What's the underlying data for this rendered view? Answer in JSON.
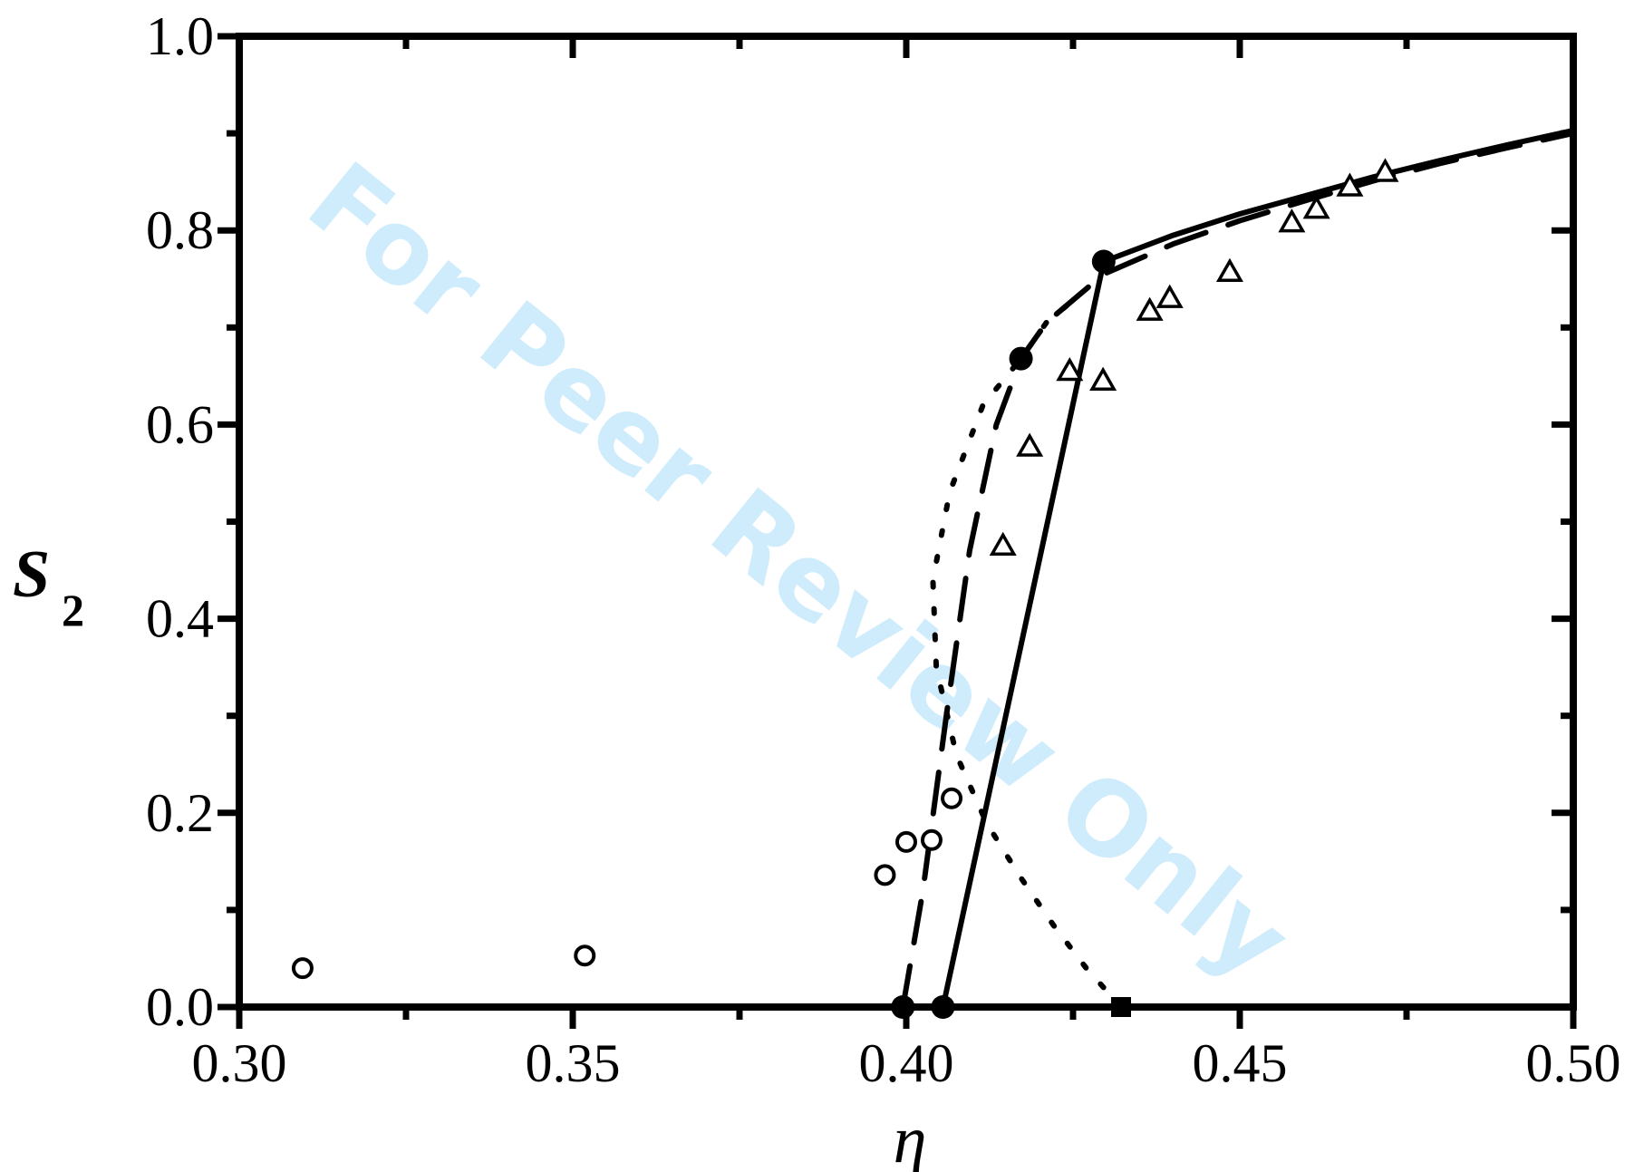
{
  "watermark": "For Peer Review Only",
  "chart_data": {
    "type": "line",
    "xlabel": "η",
    "ylabel": "S",
    "ylabel_subscript": "2",
    "xlim": [
      0.3,
      0.5
    ],
    "ylim": [
      0.0,
      1.0
    ],
    "x_ticks": [
      "0.30",
      "0.35",
      "0.40",
      "0.45",
      "0.50"
    ],
    "y_ticks": [
      "0.0",
      "0.2",
      "0.4",
      "0.6",
      "0.8",
      "1.0"
    ],
    "grid": false,
    "series": [
      {
        "style": "solid",
        "points": [
          [
            0.4055,
            0.0
          ],
          [
            0.4296,
            0.768
          ],
          [
            0.44,
            0.795
          ],
          [
            0.45,
            0.817
          ],
          [
            0.46,
            0.836
          ],
          [
            0.47,
            0.855
          ],
          [
            0.48,
            0.872
          ],
          [
            0.49,
            0.888
          ],
          [
            0.5,
            0.903
          ]
        ]
      },
      {
        "style": "dashed",
        "points": [
          [
            0.3995,
            0.0
          ],
          [
            0.4025,
            0.12
          ],
          [
            0.406,
            0.3
          ],
          [
            0.4095,
            0.47
          ],
          [
            0.4135,
            0.6
          ],
          [
            0.4172,
            0.668
          ],
          [
            0.421,
            0.705
          ],
          [
            0.4296,
            0.755
          ],
          [
            0.44,
            0.786
          ],
          [
            0.45,
            0.81
          ],
          [
            0.46,
            0.831
          ],
          [
            0.47,
            0.851
          ],
          [
            0.48,
            0.869
          ],
          [
            0.49,
            0.885
          ],
          [
            0.5,
            0.9
          ]
        ]
      },
      {
        "style": "dotted",
        "points": [
          [
            0.4322,
            0.0
          ],
          [
            0.427,
            0.04
          ],
          [
            0.422,
            0.085
          ],
          [
            0.417,
            0.135
          ],
          [
            0.412,
            0.19
          ],
          [
            0.4075,
            0.26
          ],
          [
            0.4045,
            0.35
          ],
          [
            0.404,
            0.44
          ],
          [
            0.4065,
            0.53
          ],
          [
            0.4115,
            0.62
          ],
          [
            0.4172,
            0.668
          ],
          [
            0.421,
            0.705
          ],
          [
            0.425,
            0.728
          ]
        ]
      }
    ],
    "markers": {
      "filled_circles": [
        [
          0.3995,
          0.0
        ],
        [
          0.4055,
          0.0
        ],
        [
          0.4172,
          0.668
        ],
        [
          0.4296,
          0.768
        ]
      ],
      "filled_squares": [
        [
          0.4322,
          0.0
        ]
      ],
      "open_circles": [
        [
          0.3095,
          0.04
        ],
        [
          0.3518,
          0.053
        ],
        [
          0.3968,
          0.136
        ],
        [
          0.4,
          0.17
        ],
        [
          0.4038,
          0.172
        ],
        [
          0.4068,
          0.215
        ]
      ],
      "open_triangles": [
        [
          0.4145,
          0.475
        ],
        [
          0.4185,
          0.577
        ],
        [
          0.4245,
          0.655
        ],
        [
          0.4295,
          0.645
        ],
        [
          0.4365,
          0.717
        ],
        [
          0.4395,
          0.73
        ],
        [
          0.4485,
          0.757
        ],
        [
          0.4578,
          0.808
        ],
        [
          0.4615,
          0.822
        ],
        [
          0.4665,
          0.845
        ],
        [
          0.4718,
          0.86
        ]
      ]
    }
  }
}
